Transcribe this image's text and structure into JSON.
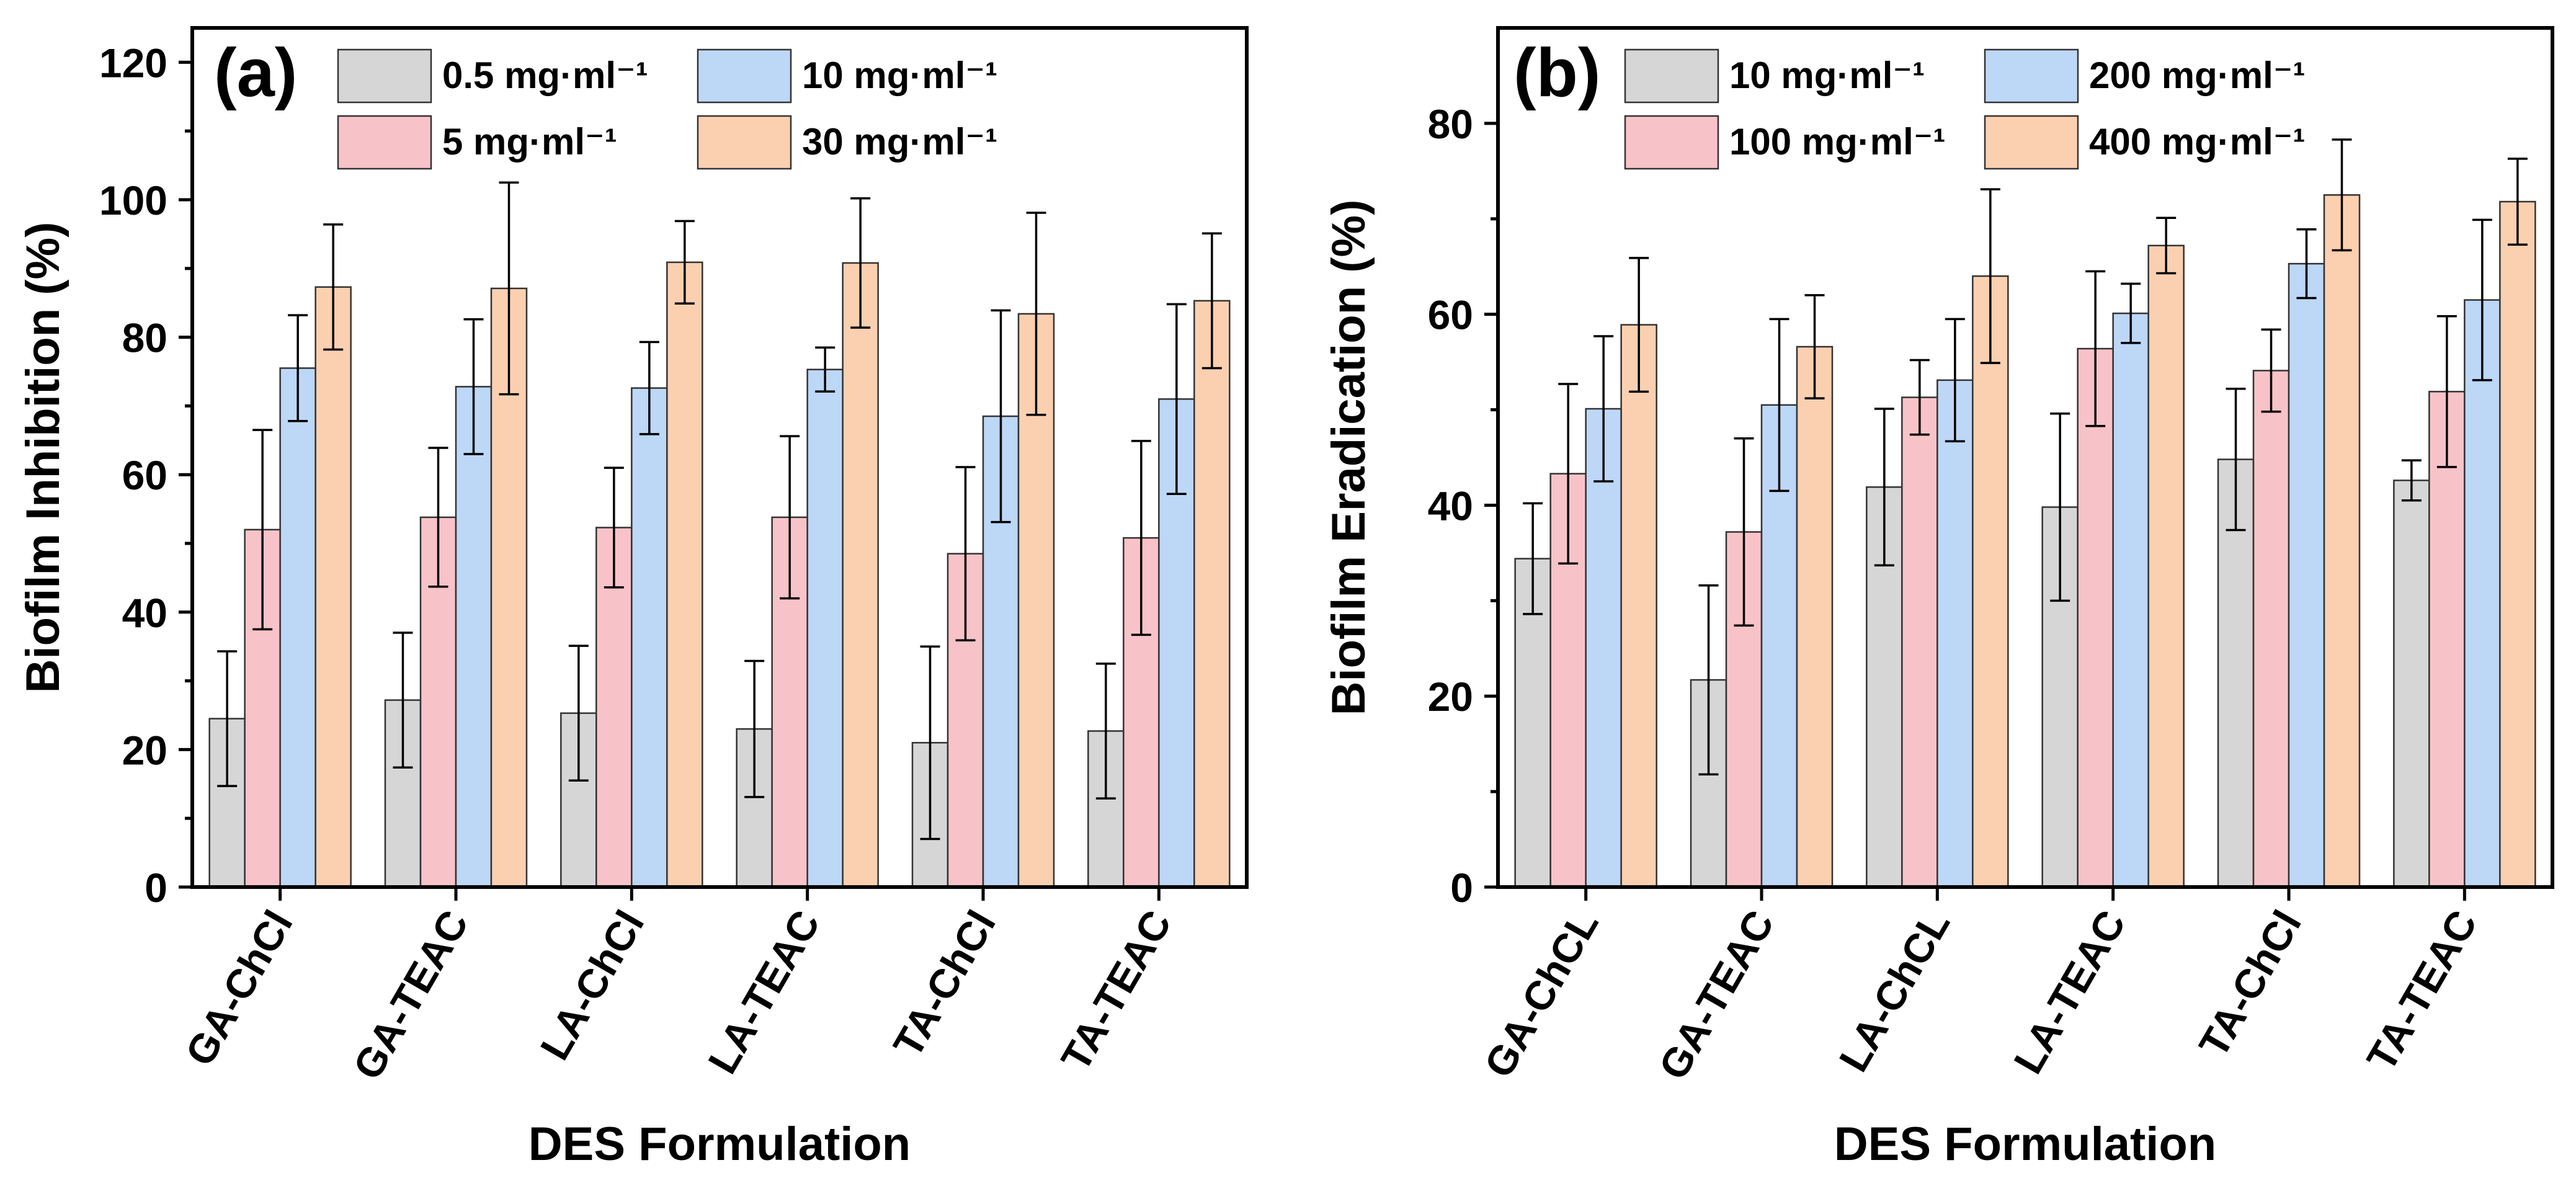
{
  "colors": {
    "series": [
      "#d6d6d6",
      "#f8c3c8",
      "#bdd7f7",
      "#fbd0b0"
    ],
    "frame": "#000000",
    "error_bar": "#000000"
  },
  "chart_data": [
    {
      "type": "bar",
      "panel_label": "(a)",
      "xlabel": "DES Formulation",
      "ylabel": "Biofilm Inhibition (%)",
      "ylim": [
        0,
        125
      ],
      "yticks": [
        "0",
        "20",
        "40",
        "60",
        "80",
        "100",
        "120"
      ],
      "ytick_values": [
        0,
        20,
        40,
        60,
        80,
        100,
        120
      ],
      "categories": [
        "GA-ChCl",
        "GA-TEAC",
        "LA-ChCl",
        "LA-TEAC",
        "TA-ChCl",
        "TA-TEAC"
      ],
      "legend_position": "top",
      "series": [
        {
          "name": "0.5 mg·ml⁻¹",
          "values": [
            24.5,
            27.2,
            25.3,
            23.0,
            21.0,
            22.7
          ],
          "errors": [
            9.8,
            9.8,
            9.8,
            9.9,
            14.0,
            9.8
          ]
        },
        {
          "name": "5 mg·ml⁻¹",
          "values": [
            52.0,
            53.8,
            52.3,
            53.8,
            48.5,
            50.8
          ],
          "errors": [
            14.5,
            10.1,
            8.7,
            11.8,
            12.6,
            14.1
          ]
        },
        {
          "name": "10 mg·ml⁻¹",
          "values": [
            75.5,
            72.8,
            72.6,
            75.3,
            68.5,
            71.0
          ],
          "errors": [
            7.7,
            9.8,
            6.7,
            3.2,
            15.4,
            13.8
          ]
        },
        {
          "name": "30 mg·ml⁻¹",
          "values": [
            87.3,
            87.1,
            90.9,
            90.8,
            83.4,
            85.3
          ],
          "errors": [
            9.1,
            15.4,
            6.0,
            9.4,
            14.7,
            9.8
          ]
        }
      ]
    },
    {
      "type": "bar",
      "panel_label": "(b)",
      "xlabel": "DES Formulation",
      "ylabel": "Biofilm Eradication (%)",
      "ylim": [
        0,
        90
      ],
      "yticks": [
        "0",
        "20",
        "40",
        "60",
        "80"
      ],
      "ytick_values": [
        0,
        20,
        40,
        60,
        80
      ],
      "categories": [
        "GA-ChCL",
        "GA-TEAC",
        "LA-ChCL",
        "LA-TEAC",
        "TA-ChCl",
        "TA-TEAC"
      ],
      "legend_position": "top",
      "series": [
        {
          "name": "10 mg·ml⁻¹",
          "values": [
            34.4,
            21.7,
            41.9,
            39.8,
            44.8,
            42.6
          ],
          "errors": [
            5.8,
            9.9,
            8.2,
            9.8,
            7.4,
            2.1
          ]
        },
        {
          "name": "100 mg·ml⁻¹",
          "values": [
            43.3,
            37.2,
            51.3,
            56.4,
            54.1,
            51.9
          ],
          "errors": [
            9.4,
            9.8,
            3.9,
            8.1,
            4.3,
            7.9
          ]
        },
        {
          "name": "200 mg·ml⁻¹",
          "values": [
            50.1,
            50.5,
            53.1,
            60.1,
            65.3,
            61.5
          ],
          "errors": [
            7.6,
            9.0,
            6.4,
            3.1,
            3.6,
            8.4
          ]
        },
        {
          "name": "400 mg·ml⁻¹",
          "values": [
            58.9,
            56.6,
            64.0,
            67.2,
            72.5,
            71.8
          ],
          "errors": [
            7.0,
            5.4,
            9.1,
            2.9,
            5.8,
            4.5
          ]
        }
      ]
    }
  ]
}
